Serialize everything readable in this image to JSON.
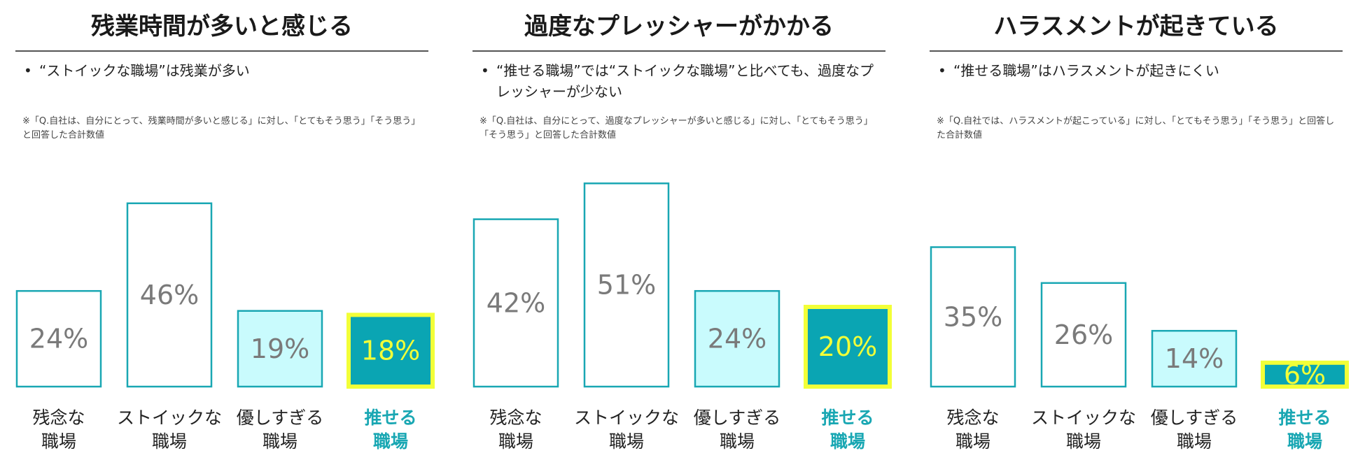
{
  "colors": {
    "accent": "#19a7b3",
    "highlight_fill": "#0aa5b3",
    "highlight_border": "#f2ff38",
    "light_fill": "#c9fbfd"
  },
  "panels": [
    {
      "title": "残業時間が多いと感じる",
      "bullet": "“ストイックな職場”は残業が多い",
      "note": "※「Q.自社は、自分にとって、残業時間が多いと感じる」に対し、「とてもそう思う」「そう思う」と回答した合計数値"
    },
    {
      "title": "過度なプレッシャーがかかる",
      "bullet": "“推せる職場”では“ストイックな職場”と比べても、過度なプレッシャーが少ない",
      "note": "※「Q.自社は、自分にとって、過度なプレッシャーが多いと感じる」に対し、「とてもそう思う」「そう思う」と回答した合計数値"
    },
    {
      "title": "ハラスメントが起きている",
      "bullet": "“推せる職場”はハラスメントが起きにくい",
      "note": "※「Q.自社では、ハラスメントが起こっている」に対し、「とてもそう思う」「そう思う」と回答した合計数値"
    }
  ],
  "chart_data": [
    {
      "type": "bar",
      "title": "残業時間が多いと感じる",
      "categories": [
        [
          "残念な",
          "職場"
        ],
        [
          "ストイックな",
          "職場"
        ],
        [
          "優しすぎる",
          "職場"
        ],
        [
          "推せる",
          "職場"
        ]
      ],
      "values": [
        24,
        46,
        19,
        18
      ],
      "value_labels": [
        "24%",
        "46%",
        "19%",
        "18%"
      ],
      "highlight_index": 3,
      "ylim": [
        0,
        55
      ]
    },
    {
      "type": "bar",
      "title": "過度なプレッシャーがかかる",
      "categories": [
        [
          "残念な",
          "職場"
        ],
        [
          "ストイックな",
          "職場"
        ],
        [
          "優しすぎる",
          "職場"
        ],
        [
          "推せる",
          "職場"
        ]
      ],
      "values": [
        42,
        51,
        24,
        20
      ],
      "value_labels": [
        "42%",
        "51%",
        "24%",
        "20%"
      ],
      "highlight_index": 3,
      "ylim": [
        0,
        55
      ]
    },
    {
      "type": "bar",
      "title": "ハラスメントが起きている",
      "categories": [
        [
          "残念な",
          "職場"
        ],
        [
          "ストイックな",
          "職場"
        ],
        [
          "優しすぎる",
          "職場"
        ],
        [
          "推せる",
          "職場"
        ]
      ],
      "values": [
        35,
        26,
        14,
        6
      ],
      "value_labels": [
        "35%",
        "26%",
        "14%",
        "6%"
      ],
      "highlight_index": 3,
      "ylim": [
        0,
        55
      ]
    }
  ]
}
